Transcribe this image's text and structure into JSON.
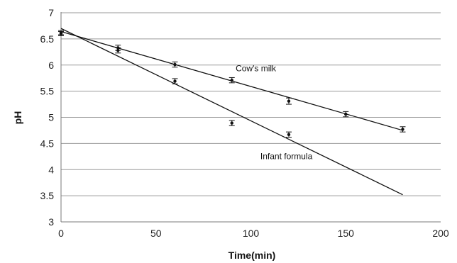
{
  "chart_data": {
    "type": "scatter",
    "xlabel": "Time(min)",
    "ylabel": "pH",
    "xlim": [
      0,
      200
    ],
    "ylim": [
      3,
      7
    ],
    "x_ticks": [
      "0",
      "50",
      "100",
      "150",
      "200"
    ],
    "y_ticks": [
      "3",
      "3.5",
      "4",
      "4.5",
      "5",
      "5.5",
      "6",
      "6.5",
      "7"
    ],
    "grid": "horizontal",
    "series": [
      {
        "name": "Cow's milk",
        "x": [
          0,
          30,
          60,
          90,
          120,
          150,
          180
        ],
        "y": [
          6.6,
          6.33,
          6.01,
          5.71,
          5.31,
          5.06,
          4.77
        ],
        "error": [
          0.04,
          0.05,
          0.05,
          0.05,
          0.06,
          0.05,
          0.05
        ],
        "trendline": {
          "x": [
            0,
            180
          ],
          "y": [
            6.64,
            4.75
          ]
        },
        "label_anchor": {
          "x": 92,
          "y": 5.88
        }
      },
      {
        "name": "Infant formula",
        "x": [
          0,
          30,
          60,
          90,
          120
        ],
        "y": [
          6.62,
          6.28,
          5.69,
          4.89,
          4.67
        ],
        "error": [
          0.04,
          0.05,
          0.05,
          0.05,
          0.05
        ],
        "trendline": {
          "x": [
            0,
            180
          ],
          "y": [
            6.7,
            3.52
          ]
        },
        "label_anchor": {
          "x": 105,
          "y": 4.2
        }
      }
    ],
    "colors": {
      "marker": "#111111",
      "line": "#111111",
      "grid": "#9a9a9a",
      "axis": "#7a7a7a"
    }
  }
}
